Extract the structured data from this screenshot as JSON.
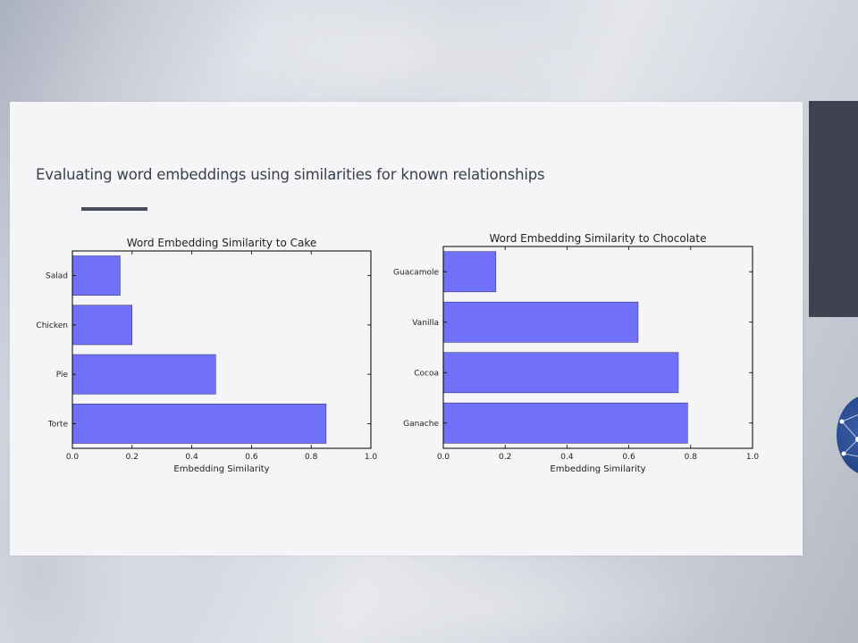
{
  "slide": {
    "title": "Evaluating word embeddings using similarities for known relationships"
  },
  "colors": {
    "bar": "#7070f8",
    "bar_edge": "#2a2a60",
    "side_panel": "#3f4250",
    "title_text": "#3a3f4d"
  },
  "chart_data": [
    {
      "type": "bar",
      "orientation": "horizontal",
      "title": "Word Embedding Similarity to Cake",
      "xlabel": "Embedding Similarity",
      "ylabel": "",
      "categories": [
        "Salad",
        "Chicken",
        "Pie",
        "Torte"
      ],
      "values": [
        0.16,
        0.2,
        0.48,
        0.85
      ],
      "xlim": [
        0.0,
        1.0
      ],
      "xticks": [
        "0.0",
        "0.2",
        "0.4",
        "0.6",
        "0.8",
        "1.0"
      ],
      "grid": false,
      "legend": "none"
    },
    {
      "type": "bar",
      "orientation": "horizontal",
      "title": "Word Embedding Similarity to Chocolate",
      "xlabel": "Embedding Similarity",
      "ylabel": "",
      "categories": [
        "Guacamole",
        "Vanilla",
        "Cocoa",
        "Ganache"
      ],
      "values": [
        0.17,
        0.63,
        0.76,
        0.79
      ],
      "xlim": [
        0.0,
        1.0
      ],
      "xticks": [
        "0.0",
        "0.2",
        "0.4",
        "0.6",
        "0.8",
        "1.0"
      ],
      "grid": false,
      "legend": "none"
    }
  ]
}
